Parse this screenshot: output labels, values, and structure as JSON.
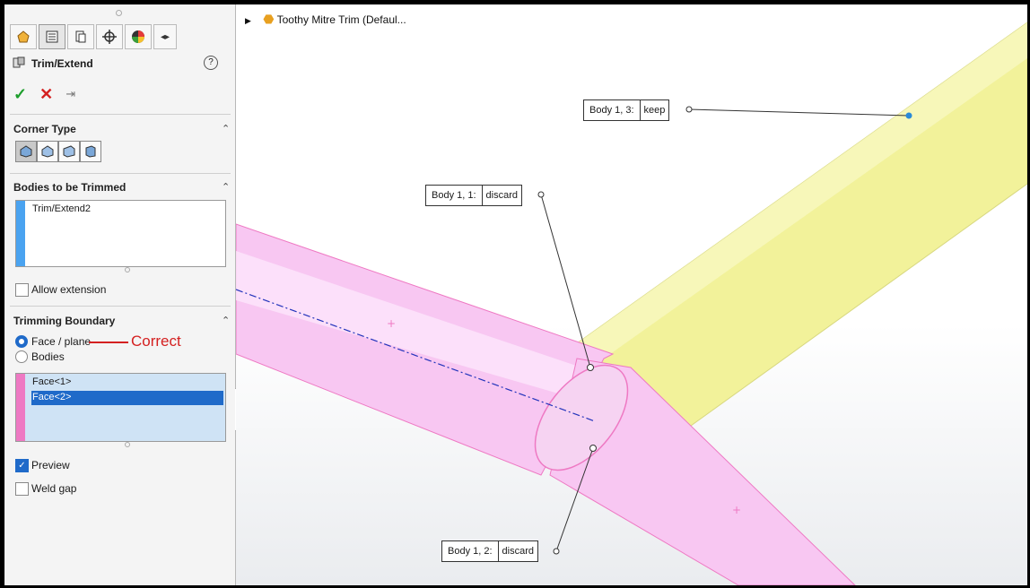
{
  "window": {
    "tree_item": "Toothy Mitre Trim (Defaul..."
  },
  "feature": {
    "title": "Trim/Extend",
    "help_icon": "help-icon"
  },
  "actions": {
    "ok_icon": "check-icon",
    "cancel_icon": "close-icon",
    "pin_icon": "pin-icon"
  },
  "tabs": [
    {
      "icon": "feature-manager-icon"
    },
    {
      "icon": "property-manager-icon"
    },
    {
      "icon": "configuration-manager-icon"
    },
    {
      "icon": "dimxpert-icon"
    },
    {
      "icon": "display-manager-icon"
    },
    {
      "icon": "expand-arrows-icon"
    }
  ],
  "corner_type": {
    "title": "Corner Type",
    "options": [
      "end-trim-icon",
      "end-miter-icon",
      "end-butt1-icon",
      "end-butt2-icon"
    ],
    "selected": 0
  },
  "bodies_to_trim": {
    "title": "Bodies to be Trimmed",
    "items": [
      "Trim/Extend2"
    ],
    "bar_color": "#4aa3f0"
  },
  "allow_extension": {
    "label": "Allow extension",
    "checked": false
  },
  "trimming_boundary": {
    "title": "Trimming Boundary",
    "options": [
      "Face / plane",
      "Bodies"
    ],
    "selected": "Face / plane",
    "annotation": "Correct",
    "annotation_color": "#d42020",
    "items": [
      "Face<1>",
      "Face<2>"
    ],
    "selected_item": "Face<2>",
    "bar_color": "#ee79c3"
  },
  "preview": {
    "label": "Preview",
    "checked": true
  },
  "weld_gap": {
    "label": "Weld gap",
    "checked": false
  },
  "callouts": [
    {
      "label": "Body 1,  3:",
      "value": "keep"
    },
    {
      "label": "Body 1,  1:",
      "value": "discard"
    },
    {
      "label": "Body 1,  2:",
      "value": "discard"
    }
  ],
  "colors": {
    "yellow_body": "#f2f29a",
    "pink_body": "#f8c7f2",
    "pink_edge": "#ee79c3",
    "selection_blue": "#1f6ac9"
  }
}
